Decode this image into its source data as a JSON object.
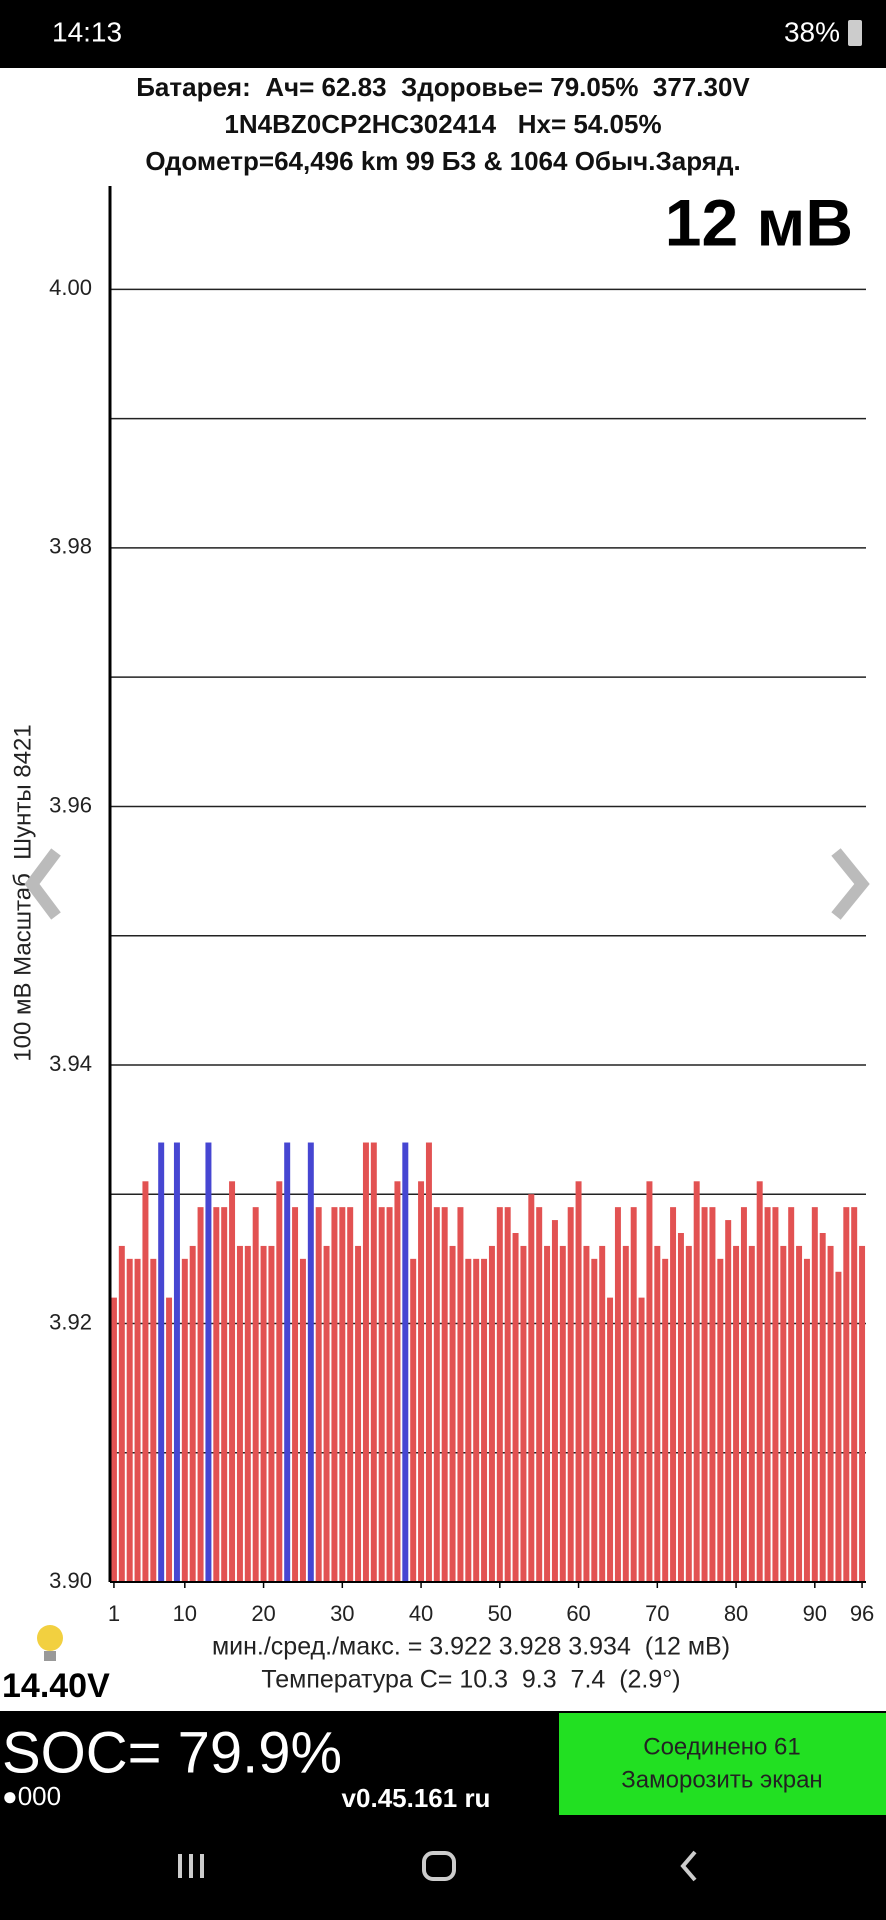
{
  "status_bar": {
    "time": "14:13",
    "battery": "38%"
  },
  "header": {
    "battery_line": "Батарея:  Ач= 62.83  Здоровье= 79.05%  377.30V",
    "vin_line": "1N4BZ0CP2HC302414   Hx= 54.05%",
    "odometer_line": "Одометр=64,496 km 99 БЗ & 1064 Обыч.Заряд.",
    "delta": "12 мВ"
  },
  "chart_data": {
    "type": "bar",
    "ylabel": "100 мВ Масштаб  Шунты 8421",
    "x": [
      1,
      2,
      3,
      4,
      5,
      6,
      7,
      8,
      9,
      10,
      11,
      12,
      13,
      14,
      15,
      16,
      17,
      18,
      19,
      20,
      21,
      22,
      23,
      24,
      25,
      26,
      27,
      28,
      29,
      30,
      31,
      32,
      33,
      34,
      35,
      36,
      37,
      38,
      39,
      40,
      41,
      42,
      43,
      44,
      45,
      46,
      47,
      48,
      49,
      50,
      51,
      52,
      53,
      54,
      55,
      56,
      57,
      58,
      59,
      60,
      61,
      62,
      63,
      64,
      65,
      66,
      67,
      68,
      69,
      70,
      71,
      72,
      73,
      74,
      75,
      76,
      77,
      78,
      79,
      80,
      81,
      82,
      83,
      84,
      85,
      86,
      87,
      88,
      89,
      90,
      91,
      92,
      93,
      94,
      95,
      96
    ],
    "values": [
      3.922,
      3.926,
      3.925,
      3.925,
      3.931,
      3.925,
      3.934,
      3.922,
      3.934,
      3.925,
      3.926,
      3.929,
      3.934,
      3.929,
      3.929,
      3.931,
      3.926,
      3.926,
      3.929,
      3.926,
      3.926,
      3.931,
      3.934,
      3.929,
      3.925,
      3.934,
      3.929,
      3.926,
      3.929,
      3.929,
      3.929,
      3.926,
      3.934,
      3.934,
      3.929,
      3.929,
      3.931,
      3.934,
      3.925,
      3.931,
      3.934,
      3.929,
      3.929,
      3.926,
      3.929,
      3.925,
      3.925,
      3.925,
      3.926,
      3.929,
      3.929,
      3.927,
      3.926,
      3.93,
      3.929,
      3.926,
      3.928,
      3.926,
      3.929,
      3.931,
      3.926,
      3.925,
      3.926,
      3.922,
      3.929,
      3.926,
      3.929,
      3.922,
      3.931,
      3.926,
      3.925,
      3.929,
      3.927,
      3.926,
      3.931,
      3.929,
      3.929,
      3.925,
      3.928,
      3.926,
      3.929,
      3.926,
      3.931,
      3.929,
      3.929,
      3.926,
      3.929,
      3.926,
      3.925,
      3.929,
      3.927,
      3.926,
      3.924,
      3.929,
      3.929,
      3.926
    ],
    "color": "#e25252",
    "shunted": [
      7,
      9,
      13,
      23,
      26,
      38
    ],
    "shunt_color": "#4646d2",
    "xlim": [
      0.5,
      96.5
    ],
    "xticks": [
      1,
      10,
      20,
      30,
      40,
      50,
      60,
      70,
      80,
      90,
      96
    ],
    "ylim": [
      3.9,
      4.008
    ],
    "yticks": [
      {
        "value": 3.9,
        "label": "3.90"
      },
      {
        "value": 3.91,
        "label": null
      },
      {
        "value": 3.92,
        "label": "3.92"
      },
      {
        "value": 3.93,
        "label": null
      },
      {
        "value": 3.94,
        "label": "3.94"
      },
      {
        "value": 3.95,
        "label": null
      },
      {
        "value": 3.96,
        "label": "3.96"
      },
      {
        "value": 3.97,
        "label": null
      },
      {
        "value": 3.98,
        "label": "3.98"
      },
      {
        "value": 3.99,
        "label": null
      },
      {
        "value": 4.0,
        "label": "4.00"
      }
    ],
    "grid": true
  },
  "stats": {
    "minmax_line": "мин./сред./макс. = 3.922 3.928 3.934  (12 мВ)",
    "temp_line": "Температура С= 10.3  9.3  7.4  (2.9°)"
  },
  "footer": {
    "voltage": "14.40V",
    "soc": "SOC= 79.9%",
    "dots": "●000",
    "version": "v0.45.161 ru",
    "status": "Соединено 61",
    "freeze": "Заморозить экран"
  }
}
